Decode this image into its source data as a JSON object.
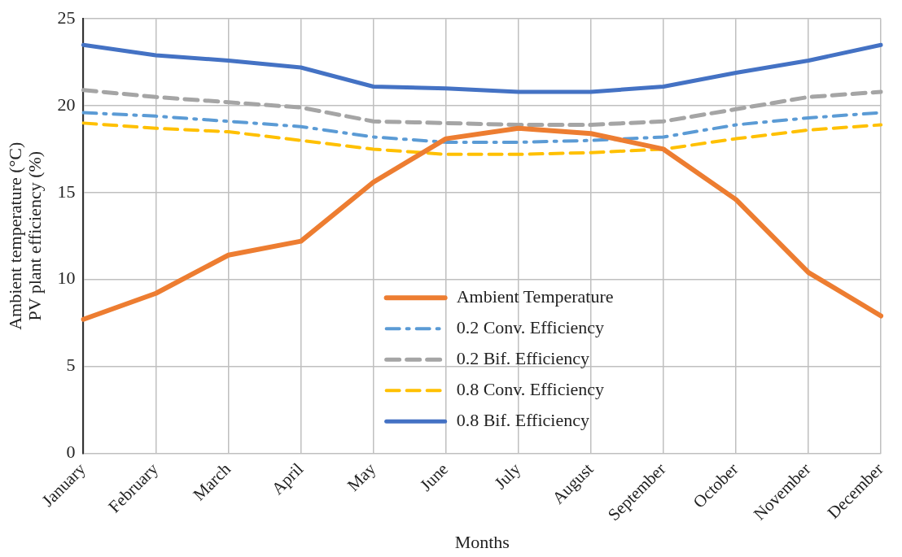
{
  "chart_data": {
    "type": "line",
    "xlabel": "Months",
    "ylabel": "Ambient temperature (°C)\nPV plant efficiency (%)",
    "categories": [
      "January",
      "February",
      "March",
      "April",
      "May",
      "June",
      "July",
      "August",
      "September",
      "October",
      "November",
      "December"
    ],
    "series": [
      {
        "name": "Ambient Temperature",
        "color": "#ed7d31",
        "line_style": "solid",
        "values": [
          7.7,
          9.2,
          11.4,
          12.2,
          15.6,
          18.1,
          18.7,
          18.4,
          17.5,
          14.6,
          10.4,
          7.9
        ]
      },
      {
        "name": "0.2 Conv. Efficiency",
        "color": "#5b9bd5",
        "line_style": "dashdot",
        "values": [
          19.6,
          19.4,
          19.1,
          18.8,
          18.2,
          17.9,
          17.9,
          18.0,
          18.2,
          18.9,
          19.3,
          19.6
        ]
      },
      {
        "name": "0.2 Bif. Efficiency",
        "color": "#a5a5a5",
        "line_style": "dashed",
        "values": [
          20.9,
          20.5,
          20.2,
          19.9,
          19.1,
          19.0,
          18.9,
          18.9,
          19.1,
          19.8,
          20.5,
          20.8
        ]
      },
      {
        "name": "0.8 Conv. Efficiency",
        "color": "#ffc000",
        "line_style": "dashed",
        "values": [
          19.0,
          18.7,
          18.5,
          18.0,
          17.5,
          17.2,
          17.2,
          17.3,
          17.5,
          18.1,
          18.6,
          18.9
        ]
      },
      {
        "name": "0.8 Bif. Efficiency",
        "color": "#4472c4",
        "line_style": "solid",
        "values": [
          23.5,
          22.9,
          22.6,
          22.2,
          21.1,
          21.0,
          20.8,
          20.8,
          21.1,
          21.9,
          22.6,
          23.5
        ]
      }
    ],
    "ylim": [
      0,
      25
    ],
    "yticks": [
      0,
      5,
      10,
      15,
      20,
      25
    ],
    "grid": true,
    "legend": "bottom",
    "marker": "none"
  }
}
